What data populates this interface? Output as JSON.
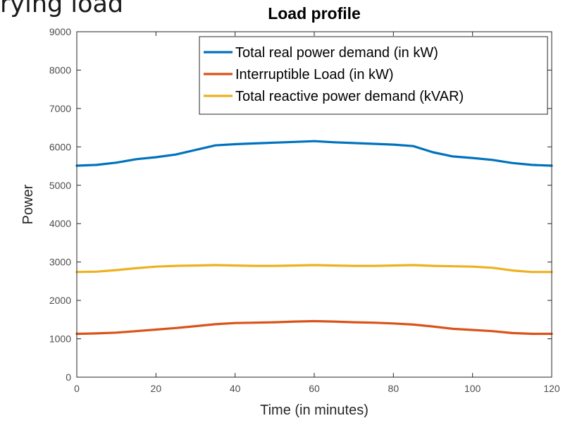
{
  "slide": {
    "heading": "rying load"
  },
  "chart_data": {
    "type": "line",
    "title": "Load profile",
    "xlabel": "Time (in minutes)",
    "ylabel": "Power",
    "xlim": [
      0,
      120
    ],
    "ylim": [
      0,
      9000
    ],
    "xticks": [
      0,
      20,
      40,
      60,
      80,
      100,
      120
    ],
    "yticks": [
      0,
      1000,
      2000,
      3000,
      4000,
      5000,
      6000,
      7000,
      8000,
      9000
    ],
    "grid": false,
    "legend_position": "top-right",
    "x": [
      0,
      5,
      10,
      15,
      20,
      25,
      30,
      35,
      40,
      45,
      50,
      55,
      60,
      65,
      70,
      75,
      80,
      85,
      90,
      95,
      100,
      105,
      110,
      115,
      120
    ],
    "series": [
      {
        "name": "Total real power demand (in kW)",
        "color": "#0072BD",
        "values": [
          5510,
          5530,
          5590,
          5680,
          5730,
          5800,
          5920,
          6040,
          6070,
          6090,
          6110,
          6130,
          6150,
          6120,
          6100,
          6080,
          6060,
          6020,
          5860,
          5750,
          5710,
          5660,
          5580,
          5530,
          5510
        ]
      },
      {
        "name": "Interruptible Load (in kW)",
        "color": "#D95319",
        "values": [
          1130,
          1140,
          1160,
          1200,
          1240,
          1280,
          1330,
          1380,
          1410,
          1420,
          1430,
          1450,
          1460,
          1450,
          1430,
          1420,
          1400,
          1370,
          1320,
          1260,
          1230,
          1200,
          1150,
          1130,
          1130
        ]
      },
      {
        "name": "Total reactive power demand (kVAR)",
        "color": "#EDB120",
        "values": [
          2740,
          2750,
          2790,
          2840,
          2880,
          2900,
          2910,
          2920,
          2910,
          2900,
          2900,
          2910,
          2920,
          2910,
          2900,
          2900,
          2910,
          2920,
          2900,
          2890,
          2880,
          2850,
          2780,
          2740,
          2740
        ]
      }
    ]
  }
}
